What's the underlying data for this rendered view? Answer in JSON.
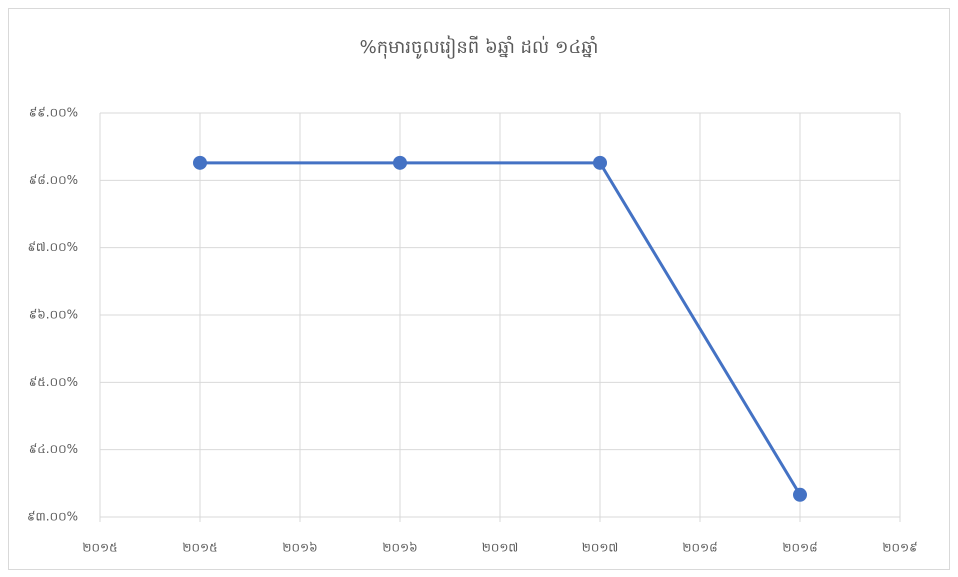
{
  "chart_data": {
    "type": "line",
    "title": "%កុមារចូលរៀនពី ៦ឆ្នាំ ដល់ ១៤ឆ្នាំ",
    "x": [
      2015.5,
      2016.5,
      2017.5,
      2018.5
    ],
    "series": [
      {
        "color": "#4472c4",
        "values": [
          98.26,
          98.26,
          98.26,
          93.33
        ]
      }
    ],
    "xlim": [
      2015,
      2019
    ],
    "xticks": [
      {
        "value": 2015,
        "label": "២០១៥"
      },
      {
        "value": 2015.5,
        "label": "២០១៥"
      },
      {
        "value": 2016,
        "label": "២០១៦"
      },
      {
        "value": 2016.5,
        "label": "២០១៦"
      },
      {
        "value": 2017,
        "label": "២០១៧"
      },
      {
        "value": 2017.5,
        "label": "២០១៧"
      },
      {
        "value": 2018,
        "label": "២០១៨"
      },
      {
        "value": 2018.5,
        "label": "២០១៨"
      },
      {
        "value": 2019,
        "label": "២០១៩"
      }
    ],
    "ylim": [
      93,
      99
    ],
    "yticks": [
      {
        "value": 93,
        "label": "៩៣.០០%"
      },
      {
        "value": 94,
        "label": "៩៤.០០%"
      },
      {
        "value": 95,
        "label": "៩៥.០០%"
      },
      {
        "value": 96,
        "label": "៩៦.០០%"
      },
      {
        "value": 97,
        "label": "៩៧.០០%"
      },
      {
        "value": 98,
        "label": "៩៨.០០%"
      },
      {
        "value": 99,
        "label": "៩៩.០០%"
      }
    ],
    "grid": true
  }
}
